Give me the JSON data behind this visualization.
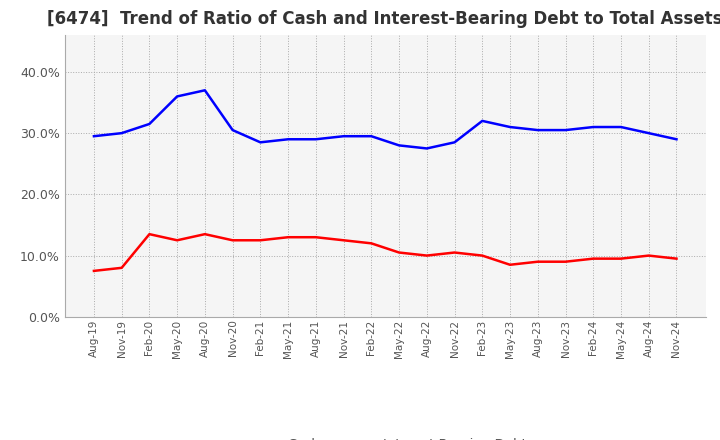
{
  "title": "[6474]  Trend of Ratio of Cash and Interest-Bearing Debt to Total Assets",
  "x_labels": [
    "Aug-19",
    "Nov-19",
    "Feb-20",
    "May-20",
    "Aug-20",
    "Nov-20",
    "Feb-21",
    "May-21",
    "Aug-21",
    "Nov-21",
    "Feb-22",
    "May-22",
    "Aug-22",
    "Nov-22",
    "Feb-23",
    "May-23",
    "Aug-23",
    "Nov-23",
    "Feb-24",
    "May-24",
    "Aug-24",
    "Nov-24"
  ],
  "cash": [
    7.5,
    8.0,
    13.5,
    12.5,
    13.5,
    12.5,
    12.5,
    13.0,
    13.0,
    12.5,
    12.0,
    10.5,
    10.0,
    10.5,
    10.0,
    8.5,
    9.0,
    9.0,
    9.5,
    9.5,
    10.0,
    9.5
  ],
  "interest_bearing_debt": [
    29.5,
    30.0,
    31.5,
    36.0,
    37.0,
    30.5,
    28.5,
    29.0,
    29.0,
    29.5,
    29.5,
    28.0,
    27.5,
    28.5,
    32.0,
    31.0,
    30.5,
    30.5,
    31.0,
    31.0,
    30.0,
    29.0
  ],
  "cash_color": "#ff0000",
  "debt_color": "#0000ff",
  "ylim": [
    0,
    46
  ],
  "yticks": [
    0,
    10,
    20,
    30,
    40
  ],
  "background_color": "#ffffff",
  "plot_bg_color": "#f5f5f5",
  "grid_color": "#aaaaaa",
  "title_fontsize": 12,
  "legend_labels": [
    "Cash",
    "Interest-Bearing Debt"
  ],
  "line_width": 1.8
}
